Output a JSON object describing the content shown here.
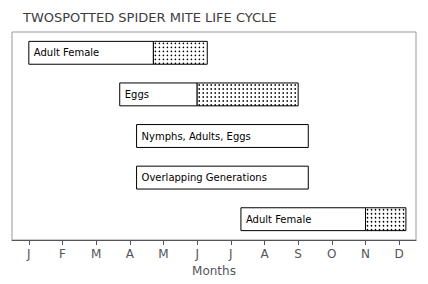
{
  "chart_data": {
    "type": "timeline",
    "orientation": "horizontal",
    "title": "TWOSPOTTED SPIDER MITE LIFE CYCLE",
    "xlabel": "Months",
    "categories": [
      "Adult Female",
      "Eggs",
      "Nymphs, Adults, Eggs",
      "Overlapping Generations",
      "Adult Female"
    ],
    "plain_start": [
      1,
      3.7,
      4.2,
      4.2,
      7.3
    ],
    "plain_end": [
      4.7,
      6.0,
      9.3,
      9.3,
      11.0
    ],
    "dotted_start": [
      4.7,
      6.0,
      null,
      null,
      11.0
    ],
    "dotted_end": [
      6.3,
      9.0,
      null,
      null,
      12.2
    ],
    "xlim": [
      0.5,
      12.5
    ],
    "xticks": [
      {
        "value": 1,
        "label": "J"
      },
      {
        "value": 2,
        "label": "F"
      },
      {
        "value": 3,
        "label": "M"
      },
      {
        "value": 4,
        "label": "A"
      },
      {
        "value": 5,
        "label": "M"
      },
      {
        "value": 6,
        "label": "J"
      },
      {
        "value": 7,
        "label": "J"
      },
      {
        "value": 8,
        "label": "A"
      },
      {
        "value": 9,
        "label": "S"
      },
      {
        "value": 10,
        "label": "O"
      },
      {
        "value": 11,
        "label": "N"
      },
      {
        "value": 12,
        "label": "D"
      }
    ],
    "grid": false,
    "tick_labels": "x"
  }
}
